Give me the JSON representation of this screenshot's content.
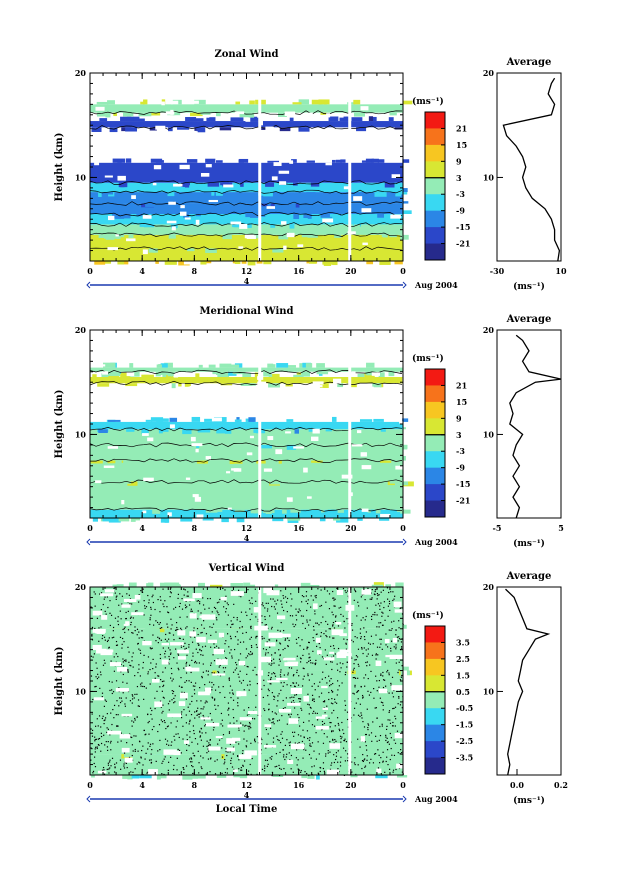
{
  "chart_data": [
    {
      "type": "heatmap",
      "title": "Zonal Wind",
      "ylabel": "Height (km)",
      "y_ticks": [
        "20",
        "10"
      ],
      "x_ticks": [
        "0",
        "4",
        "8",
        "12",
        "16",
        "20",
        "0"
      ],
      "day_label": "4",
      "month_label": "Aug 2004",
      "ylim": [
        2,
        20
      ],
      "xlim": [
        0,
        24
      ],
      "colorbar": {
        "unit": "(ms⁻¹)",
        "ticks": [
          "21",
          "15",
          "9",
          "3",
          "-3",
          "-9",
          "-15",
          "-21"
        ],
        "colors": [
          "#f31a13",
          "#f7731b",
          "#f7c621",
          "#d8e733",
          "#94ecb6",
          "#39d8f2",
          "#2b86e6",
          "#2b47c9",
          "#262a8c"
        ]
      },
      "bands": [
        {
          "y0": 2.0,
          "y1": 3.2,
          "value": 9
        },
        {
          "y0": 3.2,
          "y1": 4.5,
          "value": 5
        },
        {
          "y0": 4.5,
          "y1": 5.5,
          "value": 1
        },
        {
          "y0": 5.5,
          "y1": 6.5,
          "value": -3
        },
        {
          "y0": 6.5,
          "y1": 7.5,
          "value": -10
        },
        {
          "y0": 7.5,
          "y1": 8.6,
          "value": -14
        },
        {
          "y0": 8.6,
          "y1": 9.5,
          "value": -8
        },
        {
          "y0": 9.5,
          "y1": 11.4,
          "value": -18
        },
        {
          "y0": 14.8,
          "y1": 15.4,
          "value": -19
        },
        {
          "y0": 16.2,
          "y1": 17.0,
          "value": 2
        }
      ],
      "gaps_x": [
        12.9,
        19.8
      ],
      "average_profile": {
        "title": "Average",
        "unit": "(ms⁻¹)",
        "x_ticks": [
          "-30",
          "10"
        ],
        "y_ticks": [
          "20",
          "10"
        ],
        "xlim": [
          -30,
          10
        ],
        "ylim": [
          2,
          20
        ],
        "y": [
          2,
          3,
          4,
          5,
          6,
          7,
          8,
          9,
          10,
          11,
          12,
          13,
          14,
          15,
          16,
          17,
          18,
          19,
          19.5
        ],
        "x": [
          8,
          9,
          6,
          6,
          4,
          0,
          -8,
          -12,
          -14,
          -12,
          -14,
          -18,
          -24,
          -26,
          4,
          6,
          2,
          4,
          6
        ]
      }
    },
    {
      "type": "heatmap",
      "title": "Meridional Wind",
      "ylabel": "Height (km)",
      "y_ticks": [
        "20",
        "10"
      ],
      "x_ticks": [
        "0",
        "4",
        "8",
        "12",
        "16",
        "20",
        "0"
      ],
      "day_label": "4",
      "month_label": "Aug 2004",
      "ylim": [
        2,
        20
      ],
      "xlim": [
        0,
        24
      ],
      "colorbar": {
        "unit": "(ms⁻¹)",
        "ticks": [
          "21",
          "15",
          "9",
          "3",
          "-3",
          "-9",
          "-15",
          "-21"
        ],
        "colors": [
          "#f31a13",
          "#f7731b",
          "#f7c621",
          "#d8e733",
          "#94ecb6",
          "#39d8f2",
          "#2b86e6",
          "#2b47c9",
          "#262a8c"
        ]
      },
      "bands": [
        {
          "y0": 2.0,
          "y1": 2.8,
          "value": -4
        },
        {
          "y0": 2.8,
          "y1": 5.5,
          "value": -2
        },
        {
          "y0": 5.5,
          "y1": 7.5,
          "value": 1
        },
        {
          "y0": 7.5,
          "y1": 9.0,
          "value": 3
        },
        {
          "y0": 9.0,
          "y1": 10.5,
          "value": -1
        },
        {
          "y0": 10.5,
          "y1": 11.2,
          "value": -7
        },
        {
          "y0": 14.9,
          "y1": 15.5,
          "value": 4
        },
        {
          "y0": 16.0,
          "y1": 16.4,
          "value": -1
        }
      ],
      "gaps_x": [
        12.9,
        19.8
      ],
      "average_profile": {
        "title": "Average",
        "unit": "(ms⁻¹)",
        "x_ticks": [
          "-5",
          "5"
        ],
        "y_ticks": [
          "20",
          "10"
        ],
        "xlim": [
          -5,
          5
        ],
        "ylim": [
          2,
          20
        ],
        "y": [
          2,
          3,
          4,
          5,
          6,
          7,
          8,
          9,
          10,
          11,
          12,
          13,
          14,
          15,
          15.3,
          16,
          17,
          18,
          19,
          19.5
        ],
        "x": [
          -2,
          -1.5,
          -2.5,
          -1.5,
          -2.5,
          -1.5,
          -2.5,
          -2,
          -1,
          -3,
          -2.5,
          -3,
          -2,
          1,
          5,
          0,
          -1,
          0,
          -1,
          -2
        ]
      }
    },
    {
      "type": "heatmap",
      "title": "Vertical Wind",
      "ylabel": "Height (km)",
      "xlabel": "Local Time",
      "y_ticks": [
        "20",
        "10"
      ],
      "x_ticks": [
        "0",
        "4",
        "8",
        "12",
        "16",
        "20",
        "0"
      ],
      "day_label": "4",
      "month_label": "Aug 2004",
      "ylim": [
        2,
        20
      ],
      "xlim": [
        0,
        24
      ],
      "colorbar": {
        "unit": "(ms⁻¹)",
        "ticks": [
          "3.5",
          "2.5",
          "1.5",
          "0.5",
          "-0.5",
          "-1.5",
          "-2.5",
          "-3.5"
        ],
        "colors": [
          "#f31a13",
          "#f7731b",
          "#f7c621",
          "#d8e733",
          "#94ecb6",
          "#39d8f2",
          "#2b86e6",
          "#2b47c9",
          "#262a8c"
        ]
      },
      "bands": [
        {
          "y0": 2.0,
          "y1": 4.0,
          "value": -0.3
        },
        {
          "y0": 4.0,
          "y1": 12.0,
          "value": 0.1
        },
        {
          "y0": 12.0,
          "y1": 16.0,
          "value": 0.2
        },
        {
          "y0": 16.0,
          "y1": 20.0,
          "value": 0.05
        }
      ],
      "gaps_x": [
        12.9,
        19.8
      ],
      "average_profile": {
        "title": "Average",
        "unit": "(ms⁻¹)",
        "x_ticks": [
          "0.0",
          "0.2"
        ],
        "y_ticks": [
          "20",
          "10"
        ],
        "xlim": [
          -0.1,
          0.2
        ],
        "ylim": [
          2,
          20
        ],
        "y": [
          2,
          3,
          4,
          5,
          6,
          7,
          8,
          9,
          10,
          11,
          12,
          13,
          14,
          15,
          15.5,
          16,
          17,
          18,
          19,
          19.8
        ],
        "x": [
          -0.05,
          -0.04,
          -0.05,
          -0.04,
          -0.03,
          -0.02,
          -0.01,
          0.0,
          0.02,
          0.0,
          0.01,
          0.02,
          0.05,
          0.08,
          0.14,
          0.04,
          0.02,
          0.0,
          -0.02,
          -0.06
        ]
      }
    }
  ]
}
